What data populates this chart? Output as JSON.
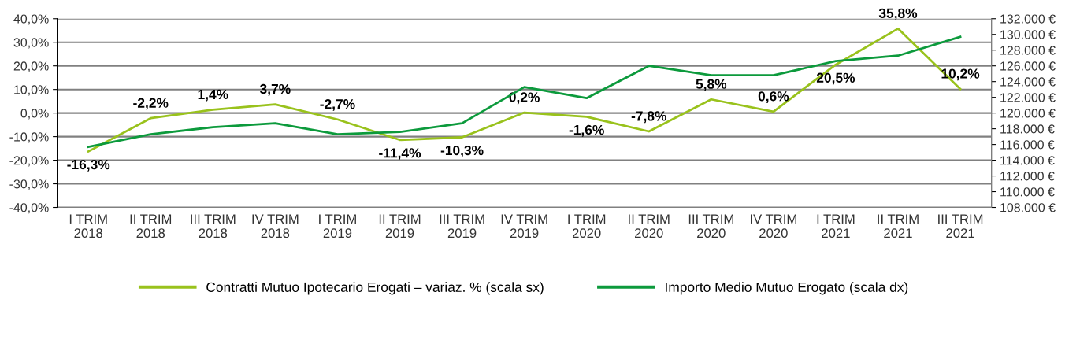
{
  "chart_data": {
    "type": "line",
    "categories": [
      "I TRIM\n2018",
      "II TRIM\n2018",
      "III TRIM\n2018",
      "IV TRIM\n2018",
      "I TRIM\n2019",
      "II TRIM\n2019",
      "III TRIM\n2019",
      "IV TRIM\n2019",
      "I TRIM\n2020",
      "II TRIM\n2020",
      "III TRIM\n2020",
      "IV TRIM\n2020",
      "I TRIM\n2021",
      "II TRIM\n2021",
      "III TRIM\n2021"
    ],
    "series": [
      {
        "name": "Contratti Mutuo Ipotecario Erogati – variaz. % (scala sx)",
        "color": "#99c21c",
        "values": [
          -16.3,
          -2.2,
          1.4,
          3.7,
          -2.7,
          -11.4,
          -10.3,
          0.2,
          -1.6,
          -7.8,
          5.8,
          0.6,
          20.5,
          35.8,
          10.2
        ],
        "value_labels": [
          "-16,3%",
          "-2,2%",
          "1,4%",
          "3,7%",
          "-2,7%",
          "-11,4%",
          "-10,3%",
          "0,2%",
          "-1,6%",
          "-7,8%",
          "5,8%",
          "0,6%",
          "20,5%",
          "35,8%",
          "10,2%"
        ]
      },
      {
        "name": "Importo Medio Mutuo Erogato (scala dx)",
        "color": "#0c9a3c",
        "axis": "y2",
        "values": [
          115700,
          117300,
          118200,
          118700,
          117300,
          117600,
          118700,
          123300,
          121900,
          126000,
          124800,
          124800,
          126600,
          127300,
          129700
        ]
      }
    ],
    "ylim": [
      -40,
      40
    ],
    "yticks": [
      {
        "value": -40,
        "label": "-40,0%"
      },
      {
        "value": -30,
        "label": "-30,0%"
      },
      {
        "value": -20,
        "label": "-20,0%"
      },
      {
        "value": -10,
        "label": "-10,0%"
      },
      {
        "value": 0,
        "label": "0,0%"
      },
      {
        "value": 10,
        "label": "10,0%"
      },
      {
        "value": 20,
        "label": "20,0%"
      },
      {
        "value": 30,
        "label": "30,0%"
      },
      {
        "value": 40,
        "label": "40,0%"
      }
    ],
    "y2lim": [
      108000,
      132000
    ],
    "y2ticks": [
      {
        "value": 108000,
        "label": "108.000 €"
      },
      {
        "value": 110000,
        "label": "110.000 €"
      },
      {
        "value": 112000,
        "label": "112.000 €"
      },
      {
        "value": 114000,
        "label": "114.000 €"
      },
      {
        "value": 116000,
        "label": "116.000 €"
      },
      {
        "value": 118000,
        "label": "118.000 €"
      },
      {
        "value": 120000,
        "label": "120.000 €"
      },
      {
        "value": 122000,
        "label": "122.000 €"
      },
      {
        "value": 124000,
        "label": "124.000 €"
      },
      {
        "value": 126000,
        "label": "126.000 €"
      },
      {
        "value": 128000,
        "label": "128.000 €"
      },
      {
        "value": 130000,
        "label": "130.000 €"
      },
      {
        "value": 132000,
        "label": "132.000 €"
      }
    ],
    "grid": "y",
    "legend": "bottom",
    "marker": "none",
    "line_style": "solid"
  }
}
